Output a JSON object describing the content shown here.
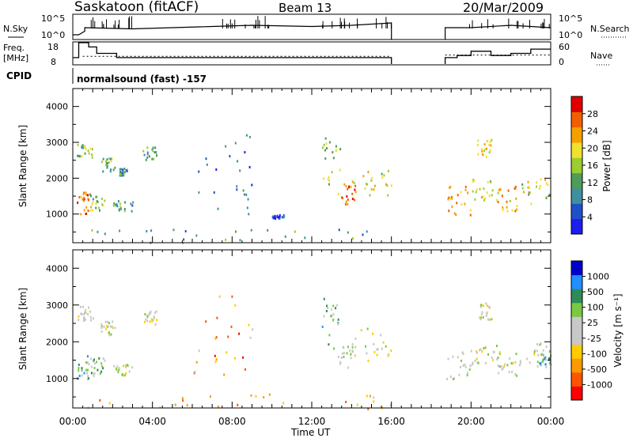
{
  "header": {
    "station": "Saskatoon (fitACF)",
    "beam": "Beam 13",
    "date": "20/Mar/2009"
  },
  "colors": {
    "power_scale": [
      "#1d1df0",
      "#2050c8",
      "#3f8fa0",
      "#4f9c5a",
      "#9acd32",
      "#f0e030",
      "#f5a000",
      "#f06000",
      "#e00000"
    ],
    "velocity_scale": [
      "#ff0000",
      "#ff5500",
      "#ff9900",
      "#ffcc00",
      "#c8c8c8",
      "#c8c8c8",
      "#7ac943",
      "#2e8b57",
      "#1e90ff",
      "#0000cc"
    ]
  },
  "chart_data": [
    {
      "type": "line",
      "panel": "noise",
      "left_label": "N.Sky",
      "right_label": "N.Search",
      "left_ticks": [
        "10^5",
        "10^0"
      ],
      "right_ticks": [
        "10^5",
        "10^0"
      ],
      "series": [
        {
          "values_x": [
            0,
            0.3,
            0.6,
            0.6,
            3,
            7,
            9,
            12,
            14,
            16,
            16
          ],
          "values_y": [
            0.2,
            0.2,
            0.35,
            0.5,
            0.45,
            0.55,
            0.6,
            0.55,
            0.6,
            0.7,
            0.0
          ]
        },
        {
          "values_x": [
            18.7,
            18.7,
            20,
            22,
            24
          ],
          "values_y": [
            0.0,
            0.5,
            0.5,
            0.6,
            0.5
          ]
        }
      ]
    },
    {
      "type": "line",
      "panel": "frequency",
      "left_label": "Freq. [MHz]",
      "right_label": "Nave",
      "left_ticks": [
        "18",
        "8"
      ],
      "right_ticks": [
        "60",
        "0"
      ],
      "series": [
        {
          "values_x": [
            0,
            0.3,
            0.3,
            0.8,
            0.8,
            1.2,
            1.2,
            2.2,
            2.2,
            16,
            16
          ],
          "values_y": [
            11,
            11,
            18,
            18,
            16,
            16,
            13,
            13,
            11,
            11,
            8
          ]
        },
        {
          "values_x": [
            18.7,
            18.7,
            19.3,
            19.3,
            20,
            20,
            21,
            21,
            22,
            22,
            23,
            23,
            24
          ],
          "values_y": [
            8,
            11,
            11,
            12,
            12,
            14,
            14,
            12,
            12,
            13,
            13,
            15,
            15
          ]
        }
      ]
    },
    {
      "type": "table",
      "panel": "cpid",
      "label": "CPID",
      "text": "normalsound (fast) -157"
    },
    {
      "type": "heatmap",
      "panel": "power",
      "ylabel": "Slant Range [km]",
      "ylim": [
        200,
        4500
      ],
      "yticks": [
        1000,
        2000,
        3000,
        4000
      ],
      "colorbar_label": "Power [dB]",
      "colorbar_ticks": [
        "4",
        "8",
        "12",
        "16",
        "20",
        "24",
        "28"
      ],
      "regions": [
        {
          "t0": 0.2,
          "t1": 1.0,
          "r0": 2600,
          "r1": 3000,
          "level": 0.45
        },
        {
          "t0": 0.2,
          "t1": 0.8,
          "r0": 1000,
          "r1": 1700,
          "level": 0.8
        },
        {
          "t0": 0.8,
          "t1": 1.6,
          "r0": 1100,
          "r1": 1600,
          "level": 0.5
        },
        {
          "t0": 1.4,
          "t1": 2.1,
          "r0": 2200,
          "r1": 2600,
          "level": 0.4
        },
        {
          "t0": 2.0,
          "t1": 3.0,
          "r0": 1100,
          "r1": 1400,
          "level": 0.35
        },
        {
          "t0": 2.3,
          "t1": 2.7,
          "r0": 2100,
          "r1": 2300,
          "level": 0.3
        },
        {
          "t0": 3.5,
          "t1": 4.2,
          "r0": 2500,
          "r1": 2900,
          "level": 0.4
        },
        {
          "t0": 6.0,
          "t1": 9.0,
          "r0": 1000,
          "r1": 3400,
          "level": 0.2
        },
        {
          "t0": 10.0,
          "t1": 10.6,
          "r0": 900,
          "r1": 1000,
          "level": 0.1
        },
        {
          "t0": 12.5,
          "t1": 13.5,
          "r0": 1800,
          "r1": 3200,
          "level": 0.5
        },
        {
          "t0": 13.3,
          "t1": 14.2,
          "r0": 1300,
          "r1": 1900,
          "level": 0.8
        },
        {
          "t0": 14.0,
          "t1": 16.0,
          "r0": 1500,
          "r1": 2400,
          "level": 0.6
        },
        {
          "t0": 18.7,
          "t1": 20.0,
          "r0": 1000,
          "r1": 1800,
          "level": 0.75
        },
        {
          "t0": 20.0,
          "t1": 21.3,
          "r0": 1400,
          "r1": 2000,
          "level": 0.55
        },
        {
          "t0": 20.3,
          "t1": 21.0,
          "r0": 2600,
          "r1": 3100,
          "level": 0.6
        },
        {
          "t0": 21.3,
          "t1": 22.3,
          "r0": 1100,
          "r1": 1800,
          "level": 0.7
        },
        {
          "t0": 22.3,
          "t1": 24.0,
          "r0": 1300,
          "r1": 2000,
          "level": 0.55
        },
        {
          "t0": 0.0,
          "t1": 16.0,
          "r0": 200,
          "r1": 600,
          "level": 0.35
        }
      ]
    },
    {
      "type": "heatmap",
      "panel": "velocity",
      "ylabel": "Slant Range [km]",
      "ylim": [
        200,
        4500
      ],
      "yticks": [
        1000,
        2000,
        3000,
        4000
      ],
      "colorbar_label": "Velocity [m s⁻¹]",
      "colorbar_ticks": [
        "1000",
        "500",
        "100",
        "25",
        "-25",
        "-100",
        "-500",
        "-1000"
      ],
      "regions": [
        {
          "t0": 0.2,
          "t1": 1.0,
          "r0": 2600,
          "r1": 3000,
          "level": 0.5
        },
        {
          "t0": 0.2,
          "t1": 0.8,
          "r0": 1000,
          "r1": 1700,
          "level": 0.7
        },
        {
          "t0": 0.8,
          "t1": 1.6,
          "r0": 1100,
          "r1": 1600,
          "level": 0.62
        },
        {
          "t0": 1.4,
          "t1": 2.1,
          "r0": 2200,
          "r1": 2600,
          "level": 0.5
        },
        {
          "t0": 2.0,
          "t1": 3.0,
          "r0": 1100,
          "r1": 1400,
          "level": 0.5
        },
        {
          "t0": 3.5,
          "t1": 4.2,
          "r0": 2500,
          "r1": 2900,
          "level": 0.5
        },
        {
          "t0": 6.0,
          "t1": 9.0,
          "r0": 1000,
          "r1": 3400,
          "level": 0.25
        },
        {
          "t0": 12.5,
          "t1": 13.5,
          "r0": 1800,
          "r1": 3200,
          "level": 0.65
        },
        {
          "t0": 13.3,
          "t1": 14.2,
          "r0": 1300,
          "r1": 1900,
          "level": 0.5
        },
        {
          "t0": 14.0,
          "t1": 16.0,
          "r0": 1500,
          "r1": 2400,
          "level": 0.5
        },
        {
          "t0": 18.7,
          "t1": 20.0,
          "r0": 1000,
          "r1": 1800,
          "level": 0.5
        },
        {
          "t0": 20.0,
          "t1": 21.3,
          "r0": 1400,
          "r1": 2000,
          "level": 0.5
        },
        {
          "t0": 20.3,
          "t1": 21.0,
          "r0": 2600,
          "r1": 3100,
          "level": 0.5
        },
        {
          "t0": 21.3,
          "t1": 22.3,
          "r0": 1100,
          "r1": 1800,
          "level": 0.5
        },
        {
          "t0": 22.3,
          "t1": 24.0,
          "r0": 1300,
          "r1": 2000,
          "level": 0.52
        },
        {
          "t0": 23.3,
          "t1": 24.0,
          "r0": 1400,
          "r1": 1700,
          "level": 0.68
        },
        {
          "t0": 0.0,
          "t1": 16.0,
          "r0": 200,
          "r1": 600,
          "level": 0.3
        }
      ]
    }
  ],
  "time_axis": {
    "xlabel": "Time UT",
    "xlim": [
      0,
      24
    ],
    "ticks": [
      "00:00",
      "04:00",
      "08:00",
      "12:00",
      "16:00",
      "20:00",
      "00:00"
    ]
  }
}
